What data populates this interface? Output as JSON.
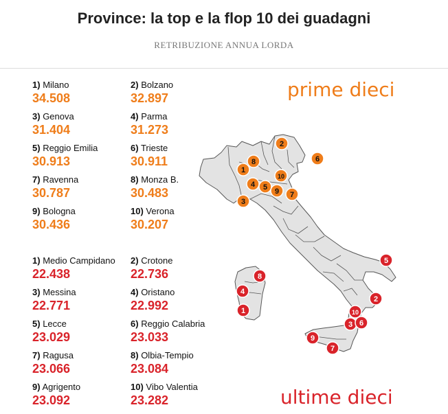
{
  "title": "Province: la top e la flop 10 dei guadagni",
  "subtitle": "RETRIBUZIONE ANNUA LORDA",
  "top_heading": "prime dieci",
  "flop_heading": "ultime dieci",
  "colors": {
    "top": "#ef7d1a",
    "flop": "#d9232a"
  },
  "top10": [
    {
      "rank": "1)",
      "name": "Milano",
      "value": "34.508"
    },
    {
      "rank": "2)",
      "name": "Bolzano",
      "value": "32.897"
    },
    {
      "rank": "3)",
      "name": "Genova",
      "value": "31.404"
    },
    {
      "rank": "4)",
      "name": "Parma",
      "value": "31.273"
    },
    {
      "rank": "5)",
      "name": "Reggio Emilia",
      "value": "30.913"
    },
    {
      "rank": "6)",
      "name": "Trieste",
      "value": "30.911"
    },
    {
      "rank": "7)",
      "name": "Ravenna",
      "value": "30.787"
    },
    {
      "rank": "8)",
      "name": "Monza B.",
      "value": "30.483"
    },
    {
      "rank": "9)",
      "name": "Bologna",
      "value": "30.436"
    },
    {
      "rank": "10)",
      "name": "Verona",
      "value": "30.207"
    }
  ],
  "flop10": [
    {
      "rank": "1)",
      "name": "Medio Campidano",
      "value": "22.438"
    },
    {
      "rank": "2)",
      "name": "Crotone",
      "value": "22.736"
    },
    {
      "rank": "3)",
      "name": "Messina",
      "value": "22.771"
    },
    {
      "rank": "4)",
      "name": "Oristano",
      "value": "22.992"
    },
    {
      "rank": "5)",
      "name": "Lecce",
      "value": "23.029"
    },
    {
      "rank": "6)",
      "name": "Reggio Calabria",
      "value": "23.033"
    },
    {
      "rank": "7)",
      "name": "Ragusa",
      "value": "23.066"
    },
    {
      "rank": "8)",
      "name": "Olbia-Tempio",
      "value": "23.084"
    },
    {
      "rank": "9)",
      "name": "Agrigento",
      "value": "23.092"
    },
    {
      "rank": "10)",
      "name": "Vibo Valentia",
      "value": "23.282"
    }
  ],
  "markers": {
    "top": [
      "1",
      "2",
      "3",
      "4",
      "5",
      "6",
      "7",
      "8",
      "9",
      "10"
    ],
    "flop": [
      "1",
      "2",
      "3",
      "4",
      "5",
      "6",
      "7",
      "8",
      "9",
      "10"
    ]
  }
}
